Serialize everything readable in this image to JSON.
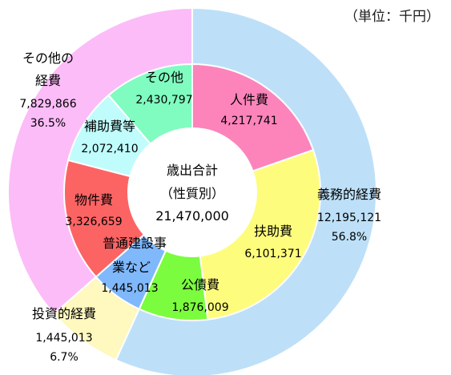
{
  "unit_label": "（単位：千円）",
  "center": {
    "title": "歳出合計",
    "subtitle": "（性質別）",
    "total": "21,470,000"
  },
  "chart_data": {
    "type": "pie",
    "variant": "nested-donut",
    "total": 21470000,
    "outer": [
      {
        "name": "義務的経費",
        "value": 12195121,
        "value_label": "12,195,121",
        "percent_label": "56.8%",
        "color": "#bde0f8"
      },
      {
        "name": "投資的経費",
        "value": 1445013,
        "value_label": "1,445,013",
        "percent_label": "6.7%",
        "color": "#fff8bf"
      },
      {
        "name": "その他の経費",
        "value": 7829866,
        "value_label": "7,829,866",
        "percent_label": "36.5%",
        "color": "#fcbcf8"
      }
    ],
    "inner": [
      {
        "name": "人件費",
        "value": 4217741,
        "value_label": "4,217,741",
        "color": "#fc84bb"
      },
      {
        "name": "扶助費",
        "value": 6101371,
        "value_label": "6,101,371",
        "color": "#fefc7c"
      },
      {
        "name": "公債費",
        "value": 1876009,
        "value_label": "1,876,009",
        "color": "#7cfc3e"
      },
      {
        "name": "普通建設事業など",
        "name_line1": "普通建設事",
        "name_line2": "業など",
        "value": 1445013,
        "value_label": "1,445,013",
        "color": "#80b8fc"
      },
      {
        "name": "物件費",
        "value": 3326659,
        "value_label": "3,326,659",
        "color": "#fc6464"
      },
      {
        "name": "補助費等",
        "value": 2072410,
        "value_label": "2,072,410",
        "color": "#c0fcfc"
      },
      {
        "name": "その他",
        "value": 2430797,
        "value_label": "2,430,797",
        "color": "#80fcc0"
      }
    ]
  }
}
